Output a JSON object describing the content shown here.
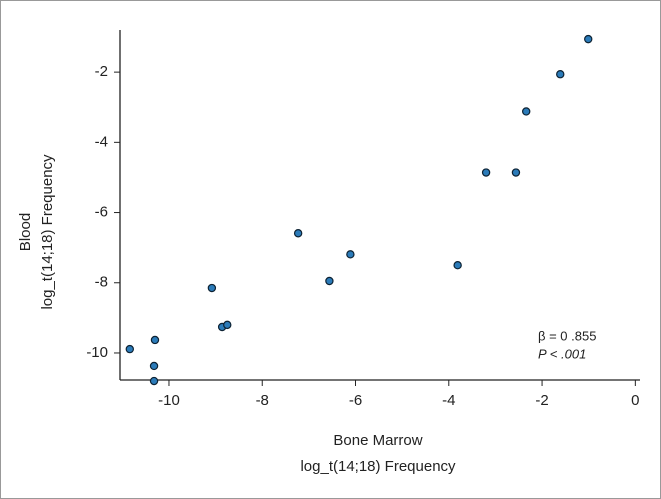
{
  "chart_data": {
    "type": "scatter",
    "x_label": [
      "Bone Marrow",
      "log_t(14;18) Frequency"
    ],
    "y_label": [
      "Blood",
      "log_t(14;18) Frequency"
    ],
    "annotations": [
      "β = 0 .855",
      "P < .001"
    ],
    "color": "#2b7bb9",
    "x": [
      -10.84,
      -10.3,
      -10.32,
      -10.32,
      -9.08,
      -8.86,
      -8.75,
      -7.23,
      -6.56,
      -6.11,
      -3.81,
      -3.2,
      -2.56,
      -2.34,
      -1.61,
      -1.01
    ],
    "y": [
      -9.89,
      -9.63,
      -10.37,
      -10.8,
      -8.15,
      -9.26,
      -9.2,
      -6.59,
      -7.95,
      -7.19,
      -7.5,
      -4.86,
      -4.86,
      -3.12,
      -2.06,
      -1.06
    ],
    "xlim": [
      -11.05,
      0.1
    ],
    "xticks": [
      -10,
      -8,
      -6,
      -4,
      -2,
      0
    ],
    "ylim": [
      -10.77,
      -0.8
    ],
    "yticks": [
      -10,
      -8,
      -6,
      -4,
      -2
    ]
  }
}
